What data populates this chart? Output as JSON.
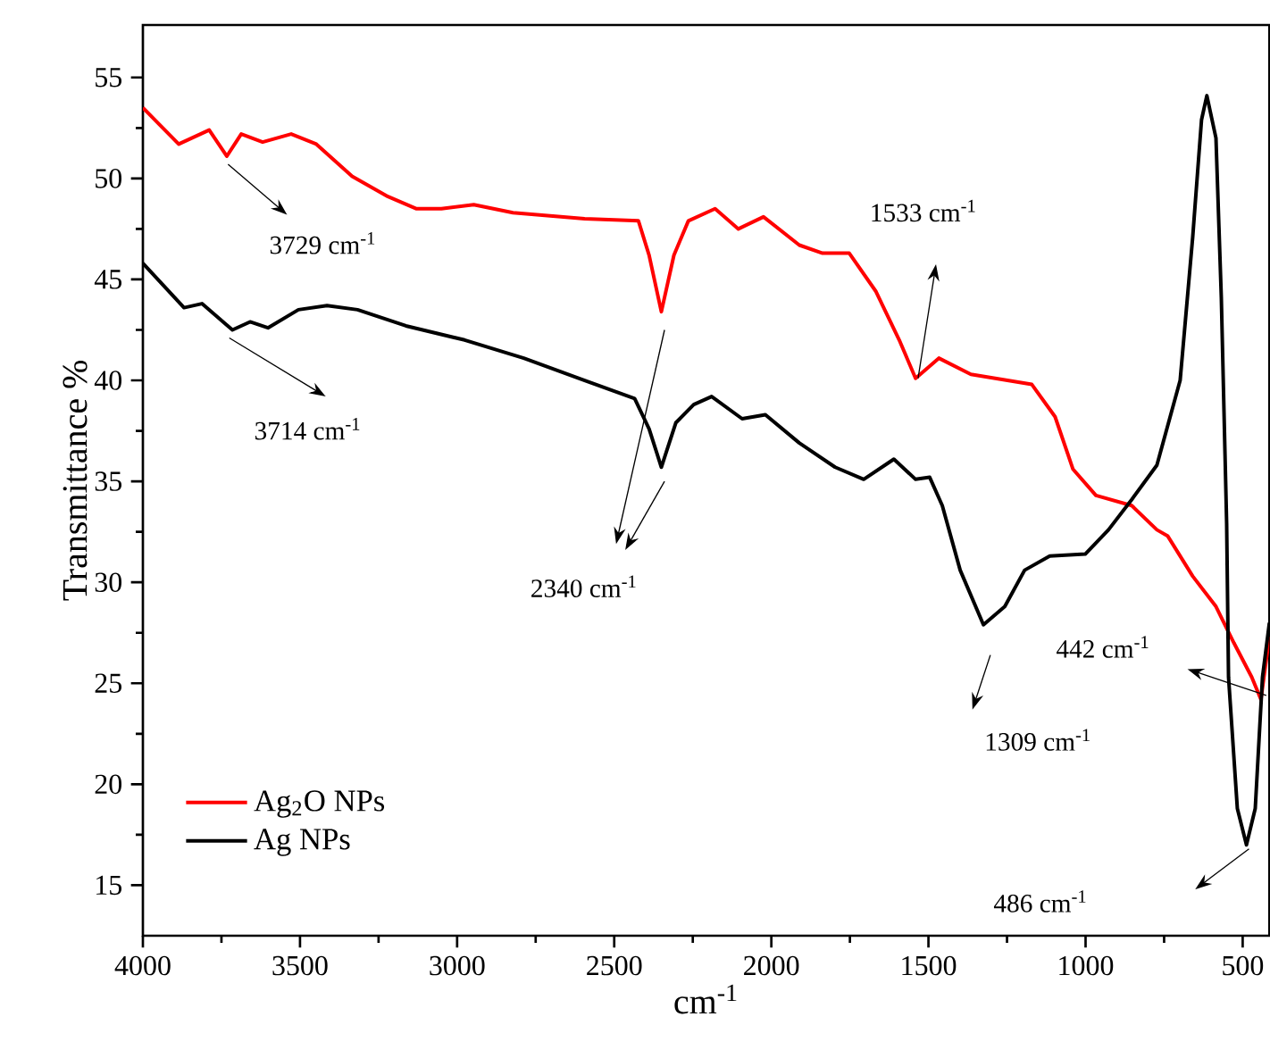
{
  "chart_data": {
    "type": "line",
    "xlabel": "cm$^{-1}$",
    "ylabel": "Transmittance %",
    "xlim": [
      4000,
      415
    ],
    "xticks": [
      4000,
      3500,
      3000,
      2500,
      2000,
      1500,
      1000,
      500
    ],
    "ylim": [
      12.5,
      57.6
    ],
    "yticks": [
      15,
      20,
      25,
      30,
      35,
      40,
      45,
      50,
      55
    ],
    "legend": "bottom left",
    "grid": false,
    "marker": "none",
    "line_style": "solid",
    "series": [
      {
        "name": "Ag$_{2}$O NPs",
        "color": "#ff0000",
        "x": [
          4000,
          3886,
          3789,
          3733,
          3687,
          3619,
          3528,
          3448,
          3334,
          3220,
          3129,
          3050,
          2947,
          2822,
          2594,
          2423,
          2389,
          2350,
          2310,
          2264,
          2179,
          2105,
          2025,
          1911,
          1837,
          1752,
          1667,
          1593,
          1541,
          1467,
          1365,
          1171,
          1097,
          1040,
          967,
          853,
          773,
          739,
          659,
          585,
          528,
          471,
          442,
          415
        ],
        "values": [
          53.5,
          51.7,
          52.4,
          51.1,
          52.2,
          51.8,
          52.2,
          51.7,
          50.1,
          49.1,
          48.5,
          48.5,
          48.7,
          48.3,
          48.0,
          47.9,
          46.2,
          43.4,
          46.2,
          47.9,
          48.5,
          47.5,
          48.1,
          46.7,
          46.3,
          46.3,
          44.4,
          42.0,
          40.1,
          41.1,
          40.3,
          39.8,
          38.2,
          35.6,
          34.3,
          33.8,
          32.6,
          32.3,
          30.3,
          28.8,
          27.0,
          25.3,
          24.2,
          27.3
        ]
      },
      {
        "name": "Ag NPs",
        "color": "#000000",
        "x": [
          4000,
          3869,
          3812,
          3715,
          3659,
          3602,
          3505,
          3414,
          3317,
          3163,
          2976,
          2788,
          2594,
          2435,
          2389,
          2350,
          2304,
          2247,
          2190,
          2093,
          2019,
          1911,
          1797,
          1706,
          1610,
          1541,
          1496,
          1456,
          1399,
          1325,
          1257,
          1194,
          1114,
          1001,
          927,
          853,
          773,
          699,
          659,
          631,
          614,
          585,
          568,
          551,
          545,
          517,
          488,
          460,
          437,
          415
        ],
        "values": [
          45.8,
          43.6,
          43.8,
          42.5,
          42.9,
          42.6,
          43.5,
          43.7,
          43.5,
          42.7,
          42.0,
          41.1,
          40.0,
          39.1,
          37.6,
          35.7,
          37.9,
          38.8,
          39.2,
          38.1,
          38.3,
          36.9,
          35.7,
          35.1,
          36.1,
          35.1,
          35.2,
          33.8,
          30.6,
          27.9,
          28.8,
          30.6,
          31.3,
          31.4,
          32.6,
          34.1,
          35.8,
          40.0,
          47.1,
          52.9,
          54.1,
          52.0,
          44.1,
          32.9,
          25.3,
          18.8,
          17.0,
          18.8,
          25.3,
          28.0
        ]
      }
    ],
    "annotations": [
      {
        "text": "3729 cm$^{-1}$",
        "x": 3729,
        "y": 51.1
      },
      {
        "text": "3714 cm$^{-1}$",
        "x": 3714,
        "y": 42.5
      },
      "2340 cm$^{-1}$",
      "1533 cm$^{-1}$",
      "1309 cm$^{-1}$",
      "442 cm$^{-1}$",
      "486 cm$^{-1}$"
    ]
  }
}
